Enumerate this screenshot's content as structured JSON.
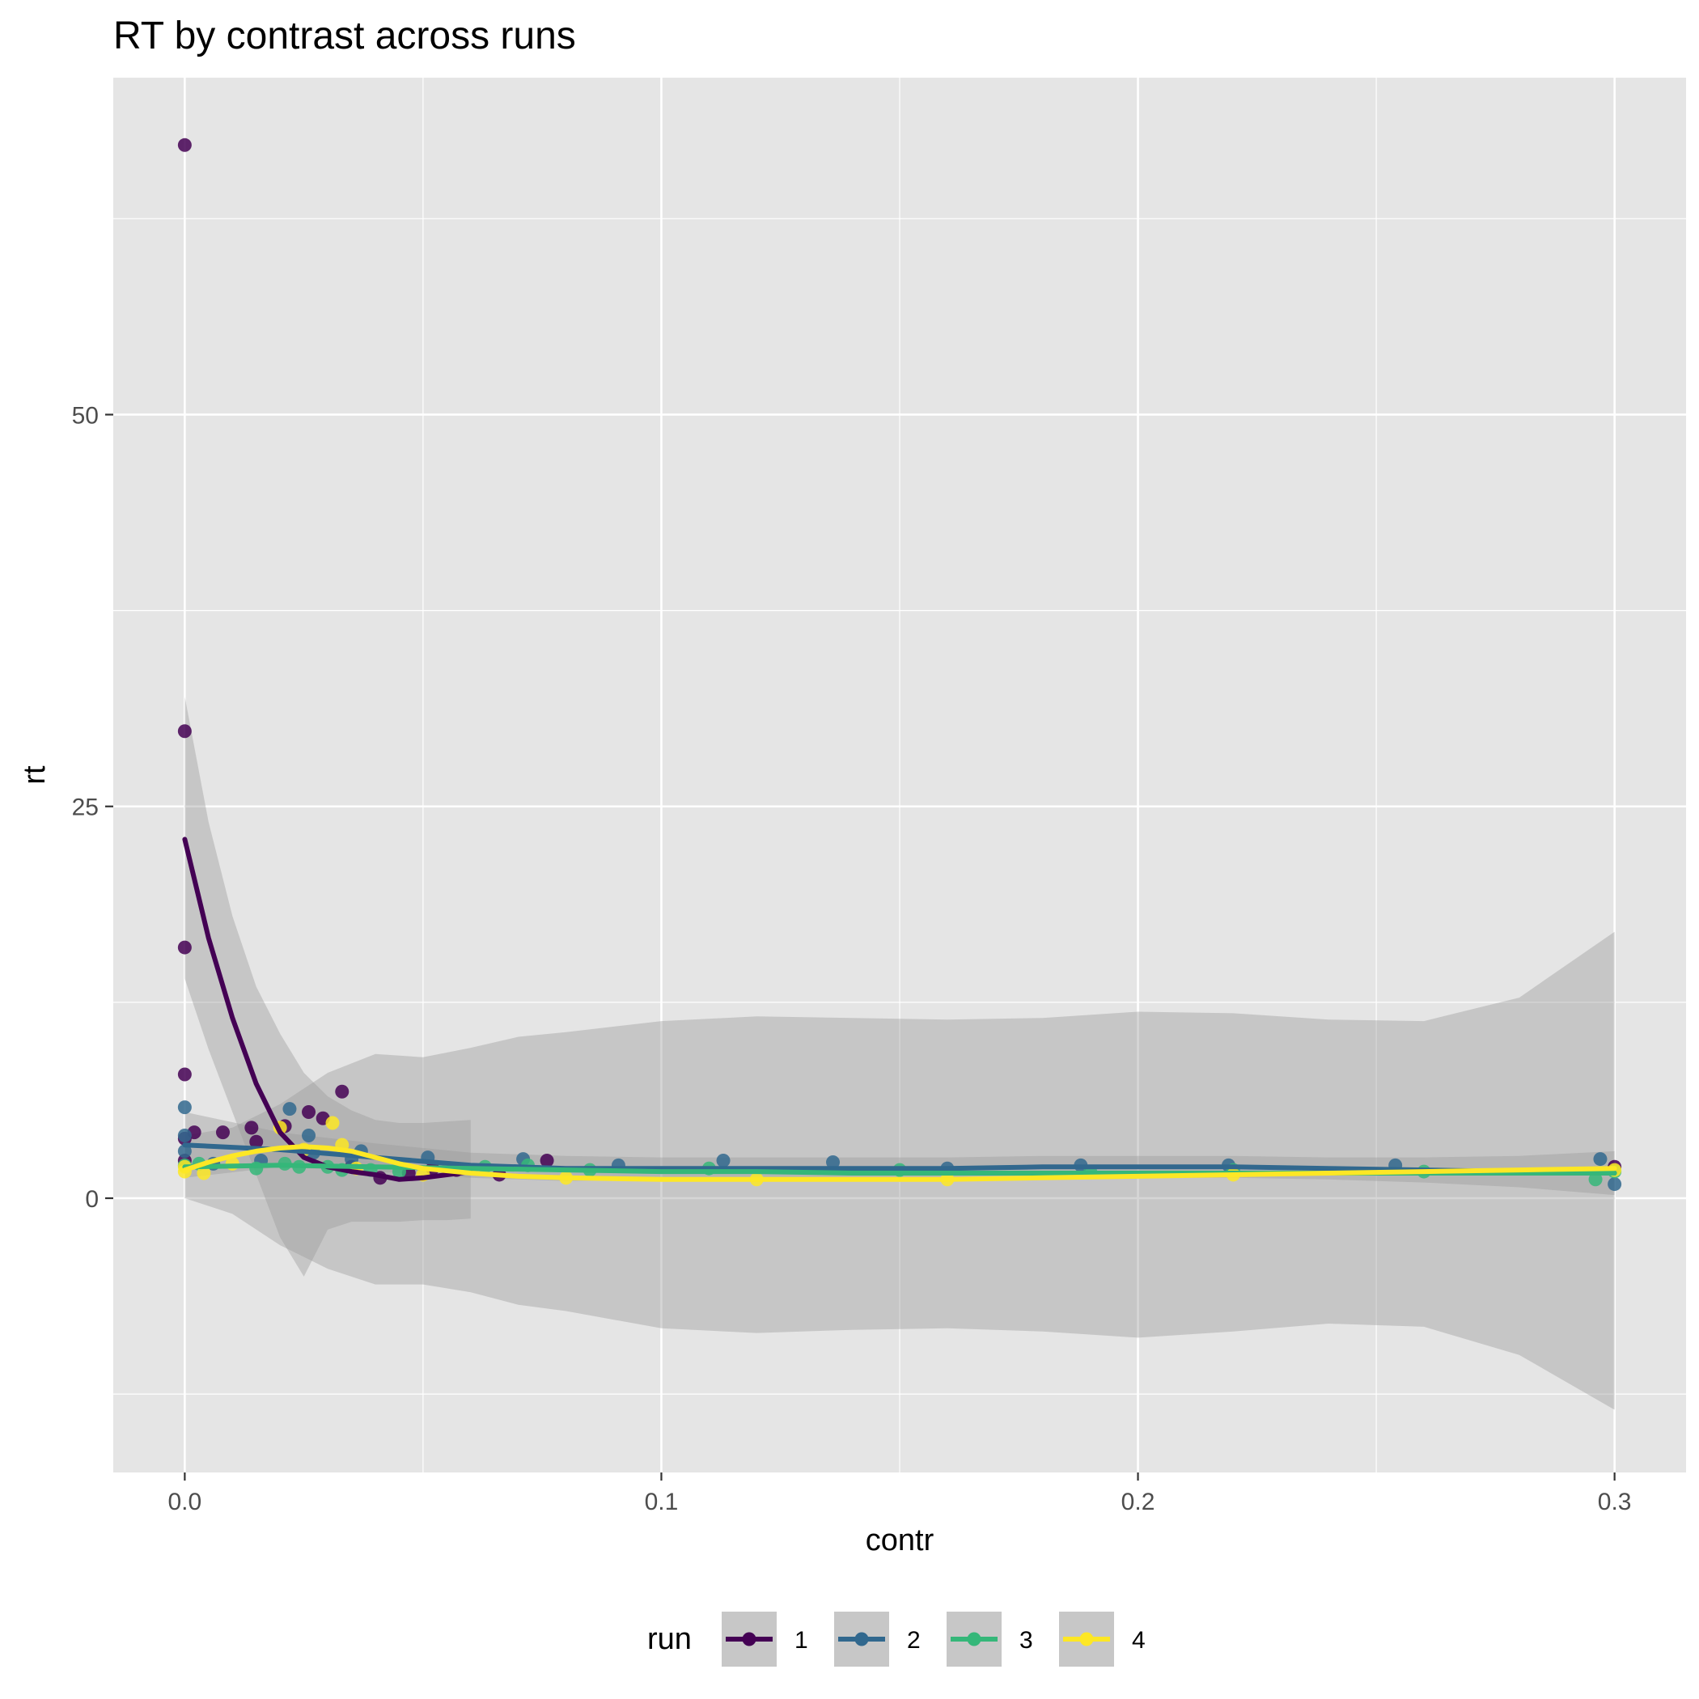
{
  "chart_data": {
    "type": "scatter",
    "title": "RT by contrast across runs",
    "xlabel": "contr",
    "ylabel": "rt",
    "xlim": [
      -0.015,
      0.315
    ],
    "ylim": [
      -17.5,
      71.5
    ],
    "xticks": [
      0.0,
      0.1,
      0.2,
      0.3
    ],
    "xtick_labels": [
      "0.0",
      "0.1",
      "0.2",
      "0.3"
    ],
    "yticks": [
      0,
      25,
      50
    ],
    "ytick_labels": [
      "0",
      "25",
      "50"
    ],
    "grid": true,
    "legend": {
      "title": "run",
      "position": "bottom",
      "entries": [
        "1",
        "2",
        "3",
        "4"
      ]
    },
    "series": [
      {
        "name": "1",
        "color": "#440154",
        "points": [
          [
            0.0,
            67.2
          ],
          [
            0.0,
            29.8
          ],
          [
            0.0,
            16.0
          ],
          [
            0.0,
            7.9
          ],
          [
            0.0,
            3.8
          ],
          [
            0.0,
            2.4
          ],
          [
            0.002,
            4.2
          ],
          [
            0.008,
            4.2
          ],
          [
            0.014,
            4.5
          ],
          [
            0.015,
            3.6
          ],
          [
            0.021,
            4.6
          ],
          [
            0.026,
            5.5
          ],
          [
            0.029,
            5.1
          ],
          [
            0.033,
            6.8
          ],
          [
            0.035,
            2.0
          ],
          [
            0.041,
            1.3
          ],
          [
            0.047,
            1.6
          ],
          [
            0.052,
            1.9
          ],
          [
            0.057,
            1.8
          ],
          [
            0.066,
            1.5
          ],
          [
            0.076,
            2.4
          ],
          [
            0.3,
            2.0
          ]
        ],
        "smooth": [
          [
            0.0,
            22.9
          ],
          [
            0.005,
            16.6
          ],
          [
            0.01,
            11.5
          ],
          [
            0.015,
            7.3
          ],
          [
            0.02,
            4.2
          ],
          [
            0.025,
            2.6
          ],
          [
            0.03,
            2.0
          ],
          [
            0.035,
            1.7
          ],
          [
            0.04,
            1.5
          ],
          [
            0.045,
            1.2
          ],
          [
            0.05,
            1.3
          ],
          [
            0.055,
            1.5
          ],
          [
            0.06,
            1.7
          ]
        ],
        "ribbon_upper": [
          [
            0.0,
            32.0
          ],
          [
            0.005,
            24.0
          ],
          [
            0.01,
            18.0
          ],
          [
            0.015,
            13.5
          ],
          [
            0.02,
            10.5
          ],
          [
            0.025,
            8.0
          ],
          [
            0.03,
            6.5
          ],
          [
            0.035,
            5.6
          ],
          [
            0.04,
            5.0
          ],
          [
            0.045,
            4.8
          ],
          [
            0.05,
            4.8
          ],
          [
            0.055,
            4.9
          ],
          [
            0.06,
            5.0
          ]
        ],
        "ribbon_lower": [
          [
            0.0,
            14.0
          ],
          [
            0.005,
            9.5
          ],
          [
            0.01,
            5.5
          ],
          [
            0.015,
            1.5
          ],
          [
            0.02,
            -2.5
          ],
          [
            0.025,
            -5.0
          ],
          [
            0.03,
            -2.0
          ],
          [
            0.035,
            -1.5
          ],
          [
            0.04,
            -1.5
          ],
          [
            0.045,
            -1.5
          ],
          [
            0.05,
            -1.4
          ],
          [
            0.055,
            -1.4
          ],
          [
            0.06,
            -1.3
          ]
        ]
      },
      {
        "name": "2",
        "color": "#31688e",
        "points": [
          [
            0.0,
            5.8
          ],
          [
            0.0,
            4.0
          ],
          [
            0.0,
            3.0
          ],
          [
            0.006,
            2.2
          ],
          [
            0.016,
            2.4
          ],
          [
            0.022,
            5.7
          ],
          [
            0.026,
            4.0
          ],
          [
            0.027,
            2.9
          ],
          [
            0.035,
            2.5
          ],
          [
            0.037,
            3.0
          ],
          [
            0.051,
            2.6
          ],
          [
            0.071,
            2.5
          ],
          [
            0.091,
            2.1
          ],
          [
            0.113,
            2.4
          ],
          [
            0.136,
            2.3
          ],
          [
            0.16,
            1.9
          ],
          [
            0.188,
            2.1
          ],
          [
            0.219,
            2.1
          ],
          [
            0.254,
            2.1
          ],
          [
            0.297,
            2.5
          ],
          [
            0.3,
            0.9
          ]
        ],
        "smooth": [
          [
            0.0,
            3.4
          ],
          [
            0.02,
            3.1
          ],
          [
            0.04,
            2.6
          ],
          [
            0.06,
            2.1
          ],
          [
            0.08,
            1.9
          ],
          [
            0.1,
            1.9
          ],
          [
            0.12,
            1.9
          ],
          [
            0.14,
            1.9
          ],
          [
            0.16,
            1.9
          ],
          [
            0.18,
            2.0
          ],
          [
            0.2,
            2.0
          ],
          [
            0.22,
            2.0
          ],
          [
            0.24,
            1.9
          ],
          [
            0.26,
            1.8
          ],
          [
            0.28,
            1.7
          ],
          [
            0.3,
            1.6
          ]
        ],
        "ribbon_upper": [
          [
            0.0,
            5.5
          ],
          [
            0.02,
            4.2
          ],
          [
            0.04,
            3.5
          ],
          [
            0.06,
            2.9
          ],
          [
            0.08,
            2.7
          ],
          [
            0.1,
            2.6
          ],
          [
            0.12,
            2.6
          ],
          [
            0.14,
            2.6
          ],
          [
            0.16,
            2.6
          ],
          [
            0.18,
            2.7
          ],
          [
            0.2,
            2.7
          ],
          [
            0.22,
            2.7
          ],
          [
            0.24,
            2.6
          ],
          [
            0.26,
            2.6
          ],
          [
            0.28,
            2.7
          ],
          [
            0.3,
            3.0
          ]
        ],
        "ribbon_lower": [
          [
            0.0,
            1.3
          ],
          [
            0.02,
            2.0
          ],
          [
            0.04,
            1.7
          ],
          [
            0.06,
            1.3
          ],
          [
            0.08,
            1.1
          ],
          [
            0.1,
            1.2
          ],
          [
            0.12,
            1.2
          ],
          [
            0.14,
            1.2
          ],
          [
            0.16,
            1.2
          ],
          [
            0.18,
            1.3
          ],
          [
            0.2,
            1.3
          ],
          [
            0.22,
            1.3
          ],
          [
            0.24,
            1.2
          ],
          [
            0.26,
            1.0
          ],
          [
            0.28,
            0.7
          ],
          [
            0.3,
            0.2
          ]
        ]
      },
      {
        "name": "3",
        "color": "#35b779",
        "points": [
          [
            0.0,
            2.1
          ],
          [
            0.003,
            2.2
          ],
          [
            0.015,
            1.9
          ],
          [
            0.021,
            2.2
          ],
          [
            0.024,
            2.0
          ],
          [
            0.03,
            2.0
          ],
          [
            0.033,
            1.8
          ],
          [
            0.039,
            1.8
          ],
          [
            0.045,
            1.7
          ],
          [
            0.063,
            2.0
          ],
          [
            0.072,
            2.1
          ],
          [
            0.085,
            1.8
          ],
          [
            0.11,
            1.9
          ],
          [
            0.15,
            1.8
          ],
          [
            0.19,
            1.7
          ],
          [
            0.22,
            1.8
          ],
          [
            0.26,
            1.7
          ],
          [
            0.296,
            1.2
          ],
          [
            0.3,
            1.7
          ]
        ],
        "smooth": [
          [
            0.0,
            2.0
          ],
          [
            0.02,
            2.1
          ],
          [
            0.04,
            2.0
          ],
          [
            0.06,
            1.9
          ],
          [
            0.08,
            1.8
          ],
          [
            0.1,
            1.7
          ],
          [
            0.12,
            1.7
          ],
          [
            0.14,
            1.6
          ],
          [
            0.16,
            1.6
          ],
          [
            0.18,
            1.6
          ],
          [
            0.2,
            1.6
          ],
          [
            0.22,
            1.6
          ],
          [
            0.24,
            1.6
          ],
          [
            0.26,
            1.6
          ],
          [
            0.28,
            1.6
          ],
          [
            0.3,
            1.6
          ]
        ]
      },
      {
        "name": "4",
        "color": "#fde725",
        "points": [
          [
            0.0,
            2.0
          ],
          [
            0.0,
            1.7
          ],
          [
            0.004,
            1.6
          ],
          [
            0.01,
            2.2
          ],
          [
            0.02,
            4.5
          ],
          [
            0.025,
            3.1
          ],
          [
            0.031,
            4.8
          ],
          [
            0.033,
            3.4
          ],
          [
            0.036,
            1.9
          ],
          [
            0.05,
            1.5
          ],
          [
            0.08,
            1.3
          ],
          [
            0.12,
            1.2
          ],
          [
            0.16,
            1.2
          ],
          [
            0.22,
            1.5
          ],
          [
            0.3,
            1.8
          ]
        ],
        "smooth": [
          [
            0.0,
            1.8
          ],
          [
            0.005,
            2.3
          ],
          [
            0.01,
            2.7
          ],
          [
            0.015,
            3.0
          ],
          [
            0.02,
            3.2
          ],
          [
            0.025,
            3.3
          ],
          [
            0.03,
            3.2
          ],
          [
            0.035,
            3.0
          ],
          [
            0.04,
            2.6
          ],
          [
            0.045,
            2.2
          ],
          [
            0.05,
            1.9
          ],
          [
            0.06,
            1.6
          ],
          [
            0.07,
            1.4
          ],
          [
            0.08,
            1.3
          ],
          [
            0.1,
            1.2
          ],
          [
            0.12,
            1.2
          ],
          [
            0.14,
            1.2
          ],
          [
            0.16,
            1.2
          ],
          [
            0.18,
            1.3
          ],
          [
            0.2,
            1.4
          ],
          [
            0.22,
            1.5
          ],
          [
            0.24,
            1.6
          ],
          [
            0.26,
            1.7
          ],
          [
            0.28,
            1.8
          ],
          [
            0.3,
            1.9
          ]
        ],
        "ribbon_upper": [
          [
            0.0,
            4.0
          ],
          [
            0.01,
            4.5
          ],
          [
            0.02,
            6.0
          ],
          [
            0.03,
            8.0
          ],
          [
            0.04,
            9.2
          ],
          [
            0.05,
            9.0
          ],
          [
            0.06,
            9.6
          ],
          [
            0.07,
            10.3
          ],
          [
            0.08,
            10.6
          ],
          [
            0.1,
            11.3
          ],
          [
            0.12,
            11.6
          ],
          [
            0.14,
            11.5
          ],
          [
            0.16,
            11.4
          ],
          [
            0.18,
            11.5
          ],
          [
            0.2,
            11.9
          ],
          [
            0.22,
            11.8
          ],
          [
            0.24,
            11.4
          ],
          [
            0.26,
            11.3
          ],
          [
            0.28,
            12.8
          ],
          [
            0.3,
            17.0
          ]
        ],
        "ribbon_lower": [
          [
            0.0,
            0.0
          ],
          [
            0.01,
            -1.0
          ],
          [
            0.02,
            -3.0
          ],
          [
            0.03,
            -4.5
          ],
          [
            0.04,
            -5.5
          ],
          [
            0.05,
            -5.5
          ],
          [
            0.06,
            -6.0
          ],
          [
            0.07,
            -6.8
          ],
          [
            0.08,
            -7.2
          ],
          [
            0.1,
            -8.3
          ],
          [
            0.12,
            -8.6
          ],
          [
            0.14,
            -8.4
          ],
          [
            0.16,
            -8.3
          ],
          [
            0.18,
            -8.5
          ],
          [
            0.2,
            -8.9
          ],
          [
            0.22,
            -8.5
          ],
          [
            0.24,
            -8.0
          ],
          [
            0.26,
            -8.2
          ],
          [
            0.28,
            -10.0
          ],
          [
            0.3,
            -13.5
          ]
        ]
      }
    ]
  }
}
